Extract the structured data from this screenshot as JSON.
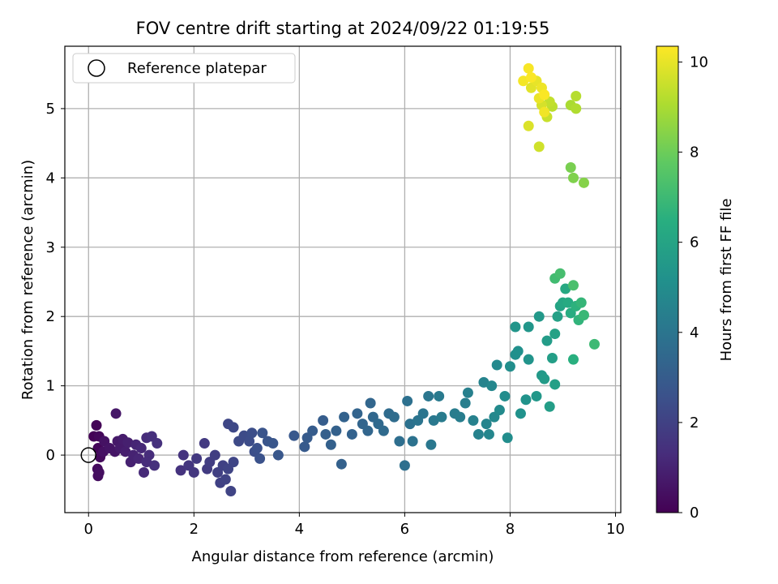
{
  "chart_data": {
    "type": "scatter",
    "title": "FOV centre drift starting at 2024/09/22 01:19:55",
    "xlabel": "Angular distance from reference (arcmin)",
    "ylabel": "Rotation from reference (arcmin)",
    "xlim": [
      -0.45,
      10.1
    ],
    "ylim": [
      -0.83,
      5.9
    ],
    "xticks": [
      "0",
      "2",
      "4",
      "6",
      "8",
      "10"
    ],
    "yticks": [
      "0",
      "1",
      "2",
      "3",
      "4",
      "5"
    ],
    "grid": true,
    "legend": {
      "position": "top-left",
      "entries": [
        "Reference platepar"
      ]
    },
    "reference_point": {
      "x": 0,
      "y": 0
    },
    "colorbar": {
      "label": "Hours from first FF file",
      "range": [
        0,
        10.35
      ],
      "ticks": [
        "0",
        "2",
        "4",
        "6",
        "8",
        "10"
      ],
      "colormap": "viridis"
    },
    "color_value": "Hours from first FF file",
    "points": [
      {
        "x": 0.1,
        "y": 0.27,
        "h": 0.05
      },
      {
        "x": 0.15,
        "y": 0.43,
        "h": 0.1
      },
      {
        "x": 0.18,
        "y": 0.1,
        "h": 0.15
      },
      {
        "x": 0.2,
        "y": 0.27,
        "h": 0.2
      },
      {
        "x": 0.22,
        "y": -0.03,
        "h": 0.25
      },
      {
        "x": 0.17,
        "y": -0.2,
        "h": 0.3
      },
      {
        "x": 0.18,
        "y": -0.3,
        "h": 0.35
      },
      {
        "x": 0.2,
        "y": -0.25,
        "h": 0.4
      },
      {
        "x": 0.28,
        "y": 0.05,
        "h": 0.45
      },
      {
        "x": 0.3,
        "y": 0.2,
        "h": 0.5
      },
      {
        "x": 0.4,
        "y": 0.1,
        "h": 0.55
      },
      {
        "x": 0.5,
        "y": 0.05,
        "h": 0.6
      },
      {
        "x": 0.52,
        "y": 0.6,
        "h": 0.65
      },
      {
        "x": 0.55,
        "y": 0.2,
        "h": 0.7
      },
      {
        "x": 0.6,
        "y": 0.1,
        "h": 0.75
      },
      {
        "x": 0.65,
        "y": 0.23,
        "h": 0.8
      },
      {
        "x": 0.7,
        "y": 0.05,
        "h": 0.85
      },
      {
        "x": 0.75,
        "y": 0.18,
        "h": 0.9
      },
      {
        "x": 0.8,
        "y": -0.1,
        "h": 0.95
      },
      {
        "x": 0.85,
        "y": 0.0,
        "h": 1.0
      },
      {
        "x": 0.9,
        "y": 0.15,
        "h": 1.05
      },
      {
        "x": 0.95,
        "y": -0.05,
        "h": 1.1
      },
      {
        "x": 1.0,
        "y": 0.1,
        "h": 1.15
      },
      {
        "x": 1.05,
        "y": -0.25,
        "h": 1.2
      },
      {
        "x": 1.1,
        "y": 0.25,
        "h": 1.25
      },
      {
        "x": 1.15,
        "y": 0.0,
        "h": 1.3
      },
      {
        "x": 1.2,
        "y": 0.27,
        "h": 1.35
      },
      {
        "x": 1.25,
        "y": -0.15,
        "h": 1.4
      },
      {
        "x": 1.3,
        "y": 0.17,
        "h": 1.45
      },
      {
        "x": 1.1,
        "y": -0.1,
        "h": 1.3
      },
      {
        "x": 1.75,
        "y": -0.22,
        "h": 1.5
      },
      {
        "x": 1.8,
        "y": 0.0,
        "h": 1.55
      },
      {
        "x": 1.9,
        "y": -0.15,
        "h": 1.6
      },
      {
        "x": 2.0,
        "y": -0.25,
        "h": 1.65
      },
      {
        "x": 2.05,
        "y": -0.05,
        "h": 1.7
      },
      {
        "x": 2.2,
        "y": 0.17,
        "h": 1.75
      },
      {
        "x": 2.25,
        "y": -0.2,
        "h": 1.8
      },
      {
        "x": 2.3,
        "y": -0.1,
        "h": 1.85
      },
      {
        "x": 2.4,
        "y": 0.0,
        "h": 1.9
      },
      {
        "x": 2.45,
        "y": -0.25,
        "h": 1.95
      },
      {
        "x": 2.5,
        "y": -0.4,
        "h": 2.0
      },
      {
        "x": 2.55,
        "y": -0.15,
        "h": 2.0
      },
      {
        "x": 2.6,
        "y": -0.35,
        "h": 2.05
      },
      {
        "x": 2.65,
        "y": -0.2,
        "h": 2.1
      },
      {
        "x": 2.7,
        "y": -0.52,
        "h": 2.1
      },
      {
        "x": 2.75,
        "y": -0.1,
        "h": 2.15
      },
      {
        "x": 2.65,
        "y": 0.45,
        "h": 2.2
      },
      {
        "x": 2.75,
        "y": 0.4,
        "h": 2.25
      },
      {
        "x": 2.85,
        "y": 0.2,
        "h": 2.3
      },
      {
        "x": 2.95,
        "y": 0.28,
        "h": 2.35
      },
      {
        "x": 3.05,
        "y": 0.2,
        "h": 2.4
      },
      {
        "x": 3.1,
        "y": 0.32,
        "h": 2.45
      },
      {
        "x": 3.15,
        "y": 0.05,
        "h": 2.5
      },
      {
        "x": 3.2,
        "y": 0.1,
        "h": 2.55
      },
      {
        "x": 3.25,
        "y": -0.05,
        "h": 2.6
      },
      {
        "x": 3.3,
        "y": 0.32,
        "h": 2.65
      },
      {
        "x": 3.4,
        "y": 0.2,
        "h": 2.7
      },
      {
        "x": 3.5,
        "y": 0.17,
        "h": 2.75
      },
      {
        "x": 3.6,
        "y": 0.0,
        "h": 2.8
      },
      {
        "x": 3.9,
        "y": 0.28,
        "h": 2.85
      },
      {
        "x": 4.1,
        "y": 0.12,
        "h": 2.9
      },
      {
        "x": 4.15,
        "y": 0.25,
        "h": 2.95
      },
      {
        "x": 4.25,
        "y": 0.35,
        "h": 3.0
      },
      {
        "x": 4.45,
        "y": 0.5,
        "h": 3.05
      },
      {
        "x": 4.5,
        "y": 0.3,
        "h": 3.1
      },
      {
        "x": 4.6,
        "y": 0.15,
        "h": 3.15
      },
      {
        "x": 4.7,
        "y": 0.35,
        "h": 3.2
      },
      {
        "x": 4.8,
        "y": -0.13,
        "h": 3.2
      },
      {
        "x": 4.85,
        "y": 0.55,
        "h": 3.25
      },
      {
        "x": 5.0,
        "y": 0.3,
        "h": 3.25
      },
      {
        "x": 5.1,
        "y": 0.6,
        "h": 3.3
      },
      {
        "x": 5.2,
        "y": 0.45,
        "h": 3.35
      },
      {
        "x": 5.3,
        "y": 0.35,
        "h": 3.4
      },
      {
        "x": 5.35,
        "y": 0.75,
        "h": 3.4
      },
      {
        "x": 5.4,
        "y": 0.55,
        "h": 3.45
      },
      {
        "x": 5.5,
        "y": 0.45,
        "h": 3.5
      },
      {
        "x": 5.6,
        "y": 0.35,
        "h": 3.55
      },
      {
        "x": 5.7,
        "y": 0.6,
        "h": 3.6
      },
      {
        "x": 5.8,
        "y": 0.55,
        "h": 3.65
      },
      {
        "x": 5.9,
        "y": 0.2,
        "h": 3.7
      },
      {
        "x": 6.0,
        "y": -0.15,
        "h": 3.75
      },
      {
        "x": 6.05,
        "y": 0.78,
        "h": 3.8
      },
      {
        "x": 6.1,
        "y": 0.45,
        "h": 3.85
      },
      {
        "x": 6.15,
        "y": 0.2,
        "h": 3.9
      },
      {
        "x": 6.25,
        "y": 0.5,
        "h": 3.95
      },
      {
        "x": 6.35,
        "y": 0.6,
        "h": 4.0
      },
      {
        "x": 6.45,
        "y": 0.85,
        "h": 4.05
      },
      {
        "x": 6.5,
        "y": 0.15,
        "h": 4.1
      },
      {
        "x": 6.55,
        "y": 0.5,
        "h": 4.15
      },
      {
        "x": 6.65,
        "y": 0.85,
        "h": 4.2
      },
      {
        "x": 6.7,
        "y": 0.55,
        "h": 4.25
      },
      {
        "x": 6.95,
        "y": 0.6,
        "h": 4.3
      },
      {
        "x": 7.05,
        "y": 0.55,
        "h": 4.35
      },
      {
        "x": 7.15,
        "y": 0.75,
        "h": 4.4
      },
      {
        "x": 7.2,
        "y": 0.9,
        "h": 4.45
      },
      {
        "x": 7.3,
        "y": 0.5,
        "h": 4.5
      },
      {
        "x": 7.4,
        "y": 0.3,
        "h": 4.55
      },
      {
        "x": 7.5,
        "y": 1.05,
        "h": 4.6
      },
      {
        "x": 7.55,
        "y": 0.45,
        "h": 4.65
      },
      {
        "x": 7.6,
        "y": 0.3,
        "h": 4.7
      },
      {
        "x": 7.65,
        "y": 1.0,
        "h": 4.75
      },
      {
        "x": 7.7,
        "y": 0.55,
        "h": 4.8
      },
      {
        "x": 7.75,
        "y": 1.3,
        "h": 4.85
      },
      {
        "x": 7.8,
        "y": 0.65,
        "h": 4.9
      },
      {
        "x": 7.9,
        "y": 0.85,
        "h": 4.95
      },
      {
        "x": 7.95,
        "y": 0.25,
        "h": 5.0
      },
      {
        "x": 8.0,
        "y": 1.28,
        "h": 5.05
      },
      {
        "x": 8.1,
        "y": 1.45,
        "h": 5.1
      },
      {
        "x": 8.15,
        "y": 1.5,
        "h": 5.15
      },
      {
        "x": 8.2,
        "y": 0.6,
        "h": 5.2
      },
      {
        "x": 8.3,
        "y": 0.8,
        "h": 5.25
      },
      {
        "x": 8.35,
        "y": 1.38,
        "h": 5.3
      },
      {
        "x": 8.1,
        "y": 1.85,
        "h": 5.35
      },
      {
        "x": 8.35,
        "y": 1.85,
        "h": 5.4
      },
      {
        "x": 8.5,
        "y": 0.85,
        "h": 5.45
      },
      {
        "x": 8.55,
        "y": 2.0,
        "h": 5.5
      },
      {
        "x": 8.6,
        "y": 1.15,
        "h": 5.55
      },
      {
        "x": 8.65,
        "y": 1.1,
        "h": 5.6
      },
      {
        "x": 8.7,
        "y": 1.65,
        "h": 5.65
      },
      {
        "x": 8.75,
        "y": 0.7,
        "h": 5.7
      },
      {
        "x": 8.8,
        "y": 1.4,
        "h": 5.75
      },
      {
        "x": 8.85,
        "y": 1.02,
        "h": 5.8
      },
      {
        "x": 8.9,
        "y": 2.0,
        "h": 5.85
      },
      {
        "x": 8.85,
        "y": 1.75,
        "h": 5.9
      },
      {
        "x": 8.95,
        "y": 2.15,
        "h": 6.0
      },
      {
        "x": 9.0,
        "y": 2.2,
        "h": 6.1
      },
      {
        "x": 9.05,
        "y": 2.4,
        "h": 6.2
      },
      {
        "x": 9.1,
        "y": 2.2,
        "h": 6.3
      },
      {
        "x": 9.15,
        "y": 2.05,
        "h": 6.4
      },
      {
        "x": 9.2,
        "y": 1.38,
        "h": 6.5
      },
      {
        "x": 9.25,
        "y": 2.15,
        "h": 6.6
      },
      {
        "x": 9.3,
        "y": 1.95,
        "h": 6.7
      },
      {
        "x": 9.35,
        "y": 2.2,
        "h": 6.8
      },
      {
        "x": 9.4,
        "y": 2.02,
        "h": 6.9
      },
      {
        "x": 9.6,
        "y": 1.6,
        "h": 7.0
      },
      {
        "x": 8.85,
        "y": 2.55,
        "h": 7.1
      },
      {
        "x": 8.95,
        "y": 2.62,
        "h": 7.2
      },
      {
        "x": 9.2,
        "y": 2.45,
        "h": 7.3
      },
      {
        "x": 9.15,
        "y": 4.15,
        "h": 8.2
      },
      {
        "x": 9.2,
        "y": 4.0,
        "h": 8.3
      },
      {
        "x": 9.4,
        "y": 3.93,
        "h": 8.4
      },
      {
        "x": 9.15,
        "y": 5.05,
        "h": 9.0
      },
      {
        "x": 9.25,
        "y": 5.0,
        "h": 9.1
      },
      {
        "x": 9.25,
        "y": 5.18,
        "h": 9.2
      },
      {
        "x": 8.8,
        "y": 5.03,
        "h": 9.3
      },
      {
        "x": 8.75,
        "y": 5.1,
        "h": 9.4
      },
      {
        "x": 8.7,
        "y": 4.88,
        "h": 9.5
      },
      {
        "x": 8.55,
        "y": 4.45,
        "h": 9.6
      },
      {
        "x": 8.6,
        "y": 5.05,
        "h": 9.7
      },
      {
        "x": 8.35,
        "y": 4.75,
        "h": 9.8
      },
      {
        "x": 8.4,
        "y": 5.3,
        "h": 9.9
      },
      {
        "x": 8.5,
        "y": 5.4,
        "h": 10.0
      },
      {
        "x": 8.55,
        "y": 5.15,
        "h": 10.05
      },
      {
        "x": 8.6,
        "y": 5.3,
        "h": 10.1
      },
      {
        "x": 8.65,
        "y": 4.95,
        "h": 10.15
      },
      {
        "x": 8.25,
        "y": 5.4,
        "h": 10.2
      },
      {
        "x": 8.35,
        "y": 5.58,
        "h": 10.25
      },
      {
        "x": 8.4,
        "y": 5.45,
        "h": 10.3
      },
      {
        "x": 8.65,
        "y": 5.2,
        "h": 10.3
      }
    ]
  }
}
